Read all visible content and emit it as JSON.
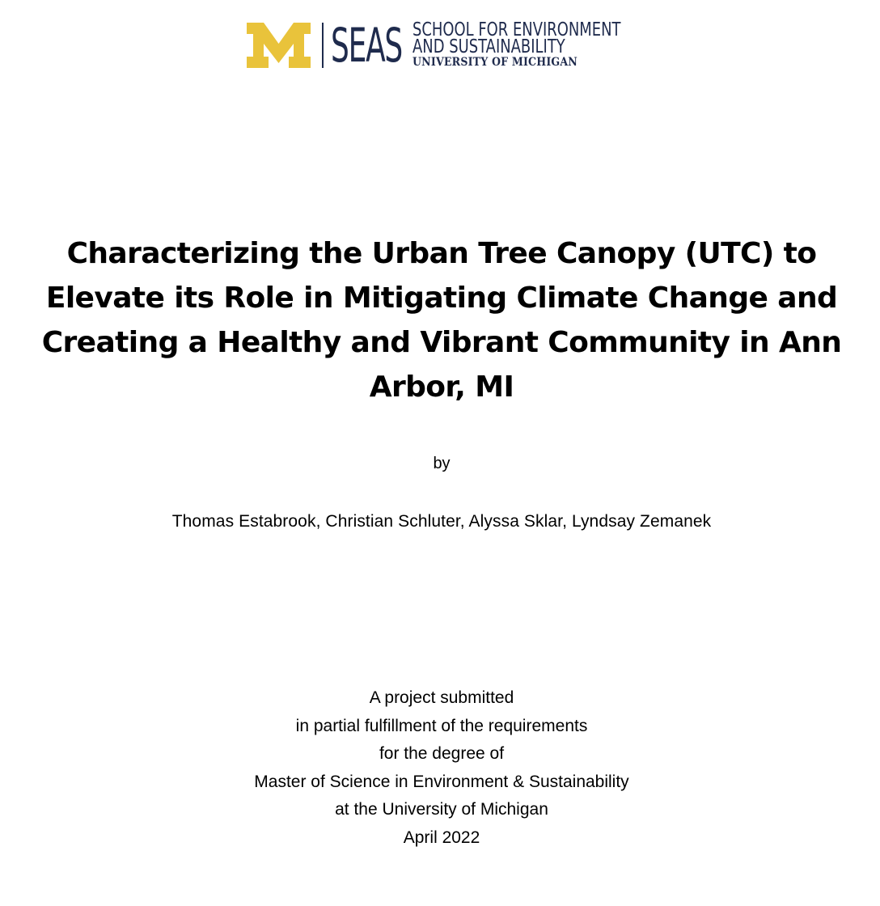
{
  "logo": {
    "seas": "SEAS",
    "school_line1": "SCHOOL FOR ENVIRONMENT",
    "school_line2": "AND SUSTAINABILITY",
    "university": "UNIVERSITY OF MICHIGAN",
    "colors": {
      "maize": "#e9c33b",
      "navy": "#1f2b4d"
    }
  },
  "title": {
    "line1": "Characterizing the Urban Tree Canopy (UTC) to",
    "line2": "Elevate its Role in Mitigating Climate Change and",
    "line3": "Creating a Healthy and Vibrant Community in Ann",
    "line4": "Arbor, MI"
  },
  "by": "by",
  "authors": "Thomas Estabrook, Christian Schluter, Alyssa Sklar, Lyndsay Zemanek",
  "submission": {
    "line1": "A project submitted",
    "line2": "in partial fulfillment of the requirements",
    "line3": "for the degree of",
    "line4": "Master of Science in Environment & Sustainability",
    "line5": "at the University of Michigan",
    "line6": "April 2022"
  }
}
